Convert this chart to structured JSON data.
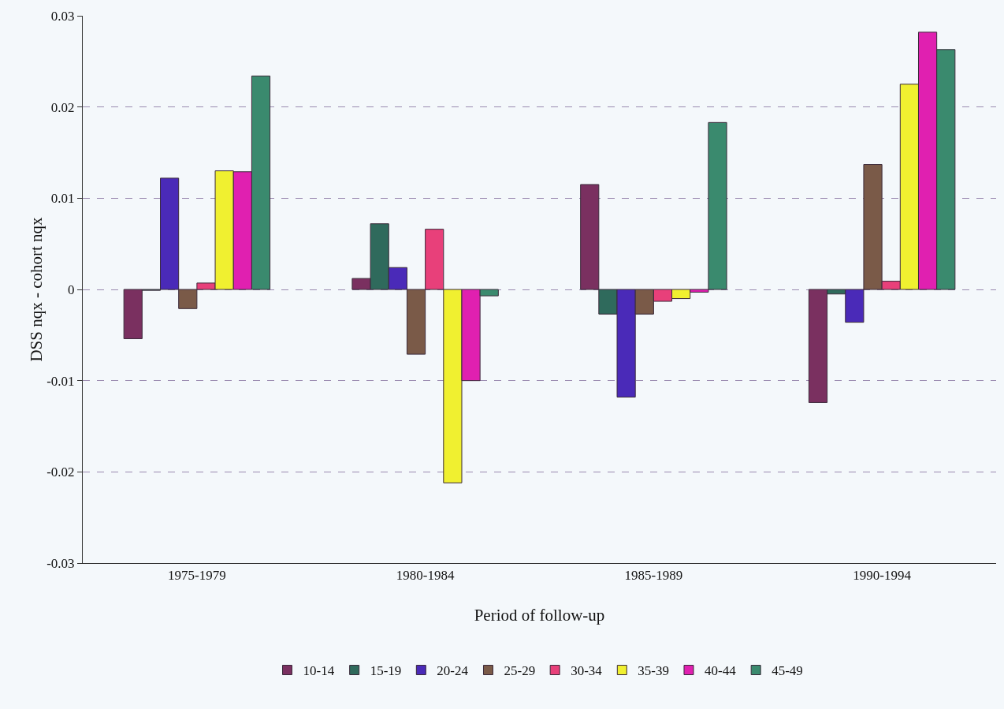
{
  "chart_data": {
    "type": "bar",
    "xlabel": "Period of follow-up",
    "ylabel": "DSS nqx - cohort nqx",
    "categories": [
      "1975-1979",
      "1980-1984",
      "1985-1989",
      "1990-1994"
    ],
    "series": [
      {
        "name": "10-14",
        "color": "#7a3060",
        "values": [
          -0.0054,
          0.0012,
          0.0115,
          -0.0124
        ]
      },
      {
        "name": "15-19",
        "color": "#2f6a5c",
        "values": [
          -0.0001,
          0.0072,
          -0.0027,
          -0.0005
        ]
      },
      {
        "name": "20-24",
        "color": "#4a2ab8",
        "values": [
          0.0122,
          0.0024,
          -0.0118,
          -0.0036
        ]
      },
      {
        "name": "25-29",
        "color": "#7a5a48",
        "values": [
          -0.0021,
          -0.0071,
          -0.0027,
          0.0137
        ]
      },
      {
        "name": "30-34",
        "color": "#e8407a",
        "values": [
          0.0007,
          0.0066,
          -0.0013,
          0.0009
        ]
      },
      {
        "name": "35-39",
        "color": "#f0f030",
        "values": [
          0.013,
          -0.0212,
          -0.001,
          0.0225
        ]
      },
      {
        "name": "40-44",
        "color": "#e020b0",
        "values": [
          0.0129,
          -0.01,
          -0.0003,
          0.0282
        ]
      },
      {
        "name": "45-49",
        "color": "#3a8a6e",
        "values": [
          0.0234,
          -0.0007,
          0.0183,
          0.0263
        ]
      }
    ],
    "ylim": [
      -0.03,
      0.03
    ],
    "yticks": [
      -0.03,
      -0.02,
      -0.01,
      0,
      0.01,
      0.02,
      0.03
    ],
    "grid": "y",
    "legend": "bottom"
  }
}
